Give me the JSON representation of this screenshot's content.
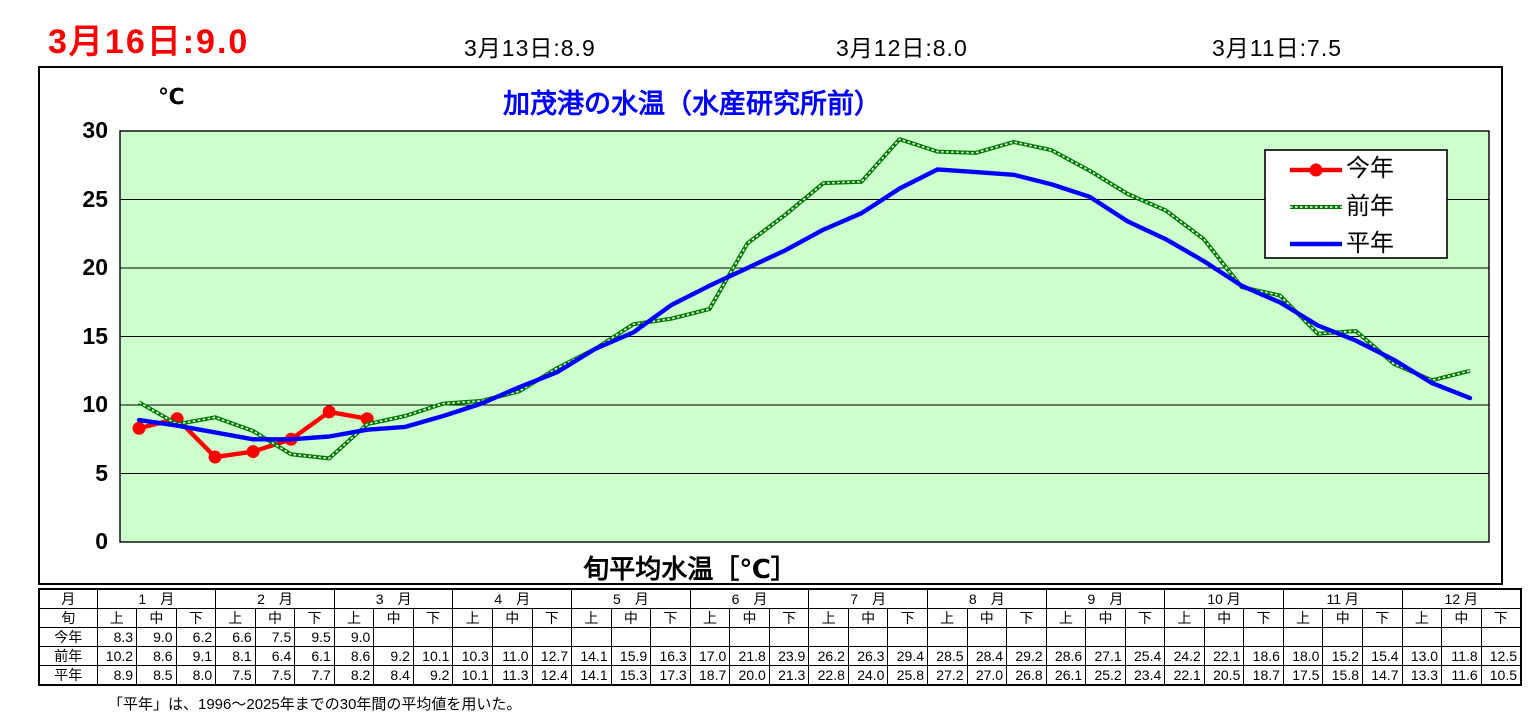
{
  "header": {
    "current_reading": "3月16日:9.0",
    "recent_readings": [
      "3月13日:8.9",
      "3月12日:8.0",
      "3月11日:7.5"
    ]
  },
  "chart_data": {
    "type": "line",
    "title": "加茂港の水温（水産研究所前）",
    "unit_label": "℃",
    "xlabel": "旬平均水温［℃］",
    "ylim": [
      0,
      30
    ],
    "yticks": [
      0,
      5,
      10,
      15,
      20,
      25,
      30
    ],
    "grid": true,
    "plot_bg": "#ccffcc",
    "legend_position": "top-right",
    "categories": [
      "1月上",
      "1月中",
      "1月下",
      "2月上",
      "2月中",
      "2月下",
      "3月上",
      "3月中",
      "3月下",
      "4月上",
      "4月中",
      "4月下",
      "5月上",
      "5月中",
      "5月下",
      "6月上",
      "6月中",
      "6月下",
      "7月上",
      "7月中",
      "7月下",
      "8月上",
      "8月中",
      "8月下",
      "9月上",
      "9月中",
      "9月下",
      "10月上",
      "10月中",
      "10月下",
      "11月上",
      "11月中",
      "11月下",
      "12月上",
      "12月中",
      "12月下"
    ],
    "series": [
      {
        "key": "this-year",
        "name": "今年",
        "color": "#ff0000",
        "style": "solid-marker",
        "values": [
          8.3,
          9.0,
          6.2,
          6.6,
          7.5,
          9.5,
          9.0
        ]
      },
      {
        "key": "last-year",
        "name": "前年",
        "color": "#007800",
        "style": "dotted",
        "values": [
          10.2,
          8.6,
          9.1,
          8.1,
          6.4,
          6.1,
          8.6,
          9.2,
          10.1,
          10.3,
          11.0,
          12.7,
          14.1,
          15.9,
          16.3,
          17.0,
          21.8,
          23.9,
          26.2,
          26.3,
          29.4,
          28.5,
          28.4,
          29.2,
          28.6,
          27.1,
          25.4,
          24.2,
          22.1,
          18.6,
          18.0,
          15.2,
          15.4,
          13.0,
          11.8,
          12.5
        ]
      },
      {
        "key": "normal-year",
        "name": "平年",
        "color": "#0000ff",
        "style": "solid",
        "values": [
          8.9,
          8.5,
          8.0,
          7.5,
          7.5,
          7.7,
          8.2,
          8.4,
          9.2,
          10.1,
          11.3,
          12.4,
          14.1,
          15.3,
          17.3,
          18.7,
          20.0,
          21.3,
          22.8,
          24.0,
          25.8,
          27.2,
          27.0,
          26.8,
          26.1,
          25.2,
          23.4,
          22.1,
          20.5,
          18.7,
          17.5,
          15.8,
          14.7,
          13.3,
          11.6,
          10.5
        ]
      }
    ]
  },
  "table": {
    "month_header_label": "月",
    "period_header_label": "旬",
    "months": [
      "1　月",
      "2　月",
      "3　月",
      "4　月",
      "5　月",
      "6　月",
      "7　月",
      "8　月",
      "9　月",
      "10 月",
      "11 月",
      "12 月"
    ],
    "periods": [
      "上",
      "中",
      "下"
    ],
    "rows": [
      {
        "label": "今年",
        "values": [
          "8.3",
          "9.0",
          "6.2",
          "6.6",
          "7.5",
          "9.5",
          "9.0",
          "",
          "",
          "",
          "",
          "",
          "",
          "",
          "",
          "",
          "",
          "",
          "",
          "",
          "",
          "",
          "",
          "",
          "",
          "",
          "",
          "",
          "",
          "",
          "",
          "",
          "",
          "",
          "",
          ""
        ]
      },
      {
        "label": "前年",
        "values": [
          "10.2",
          "8.6",
          "9.1",
          "8.1",
          "6.4",
          "6.1",
          "8.6",
          "9.2",
          "10.1",
          "10.3",
          "11.0",
          "12.7",
          "14.1",
          "15.9",
          "16.3",
          "17.0",
          "21.8",
          "23.9",
          "26.2",
          "26.3",
          "29.4",
          "28.5",
          "28.4",
          "29.2",
          "28.6",
          "27.1",
          "25.4",
          "24.2",
          "22.1",
          "18.6",
          "18.0",
          "15.2",
          "15.4",
          "13.0",
          "11.8",
          "12.5"
        ]
      },
      {
        "label": "平年",
        "values": [
          "8.9",
          "8.5",
          "8.0",
          "7.5",
          "7.5",
          "7.7",
          "8.2",
          "8.4",
          "9.2",
          "10.1",
          "11.3",
          "12.4",
          "14.1",
          "15.3",
          "17.3",
          "18.7",
          "20.0",
          "21.3",
          "22.8",
          "24.0",
          "25.8",
          "27.2",
          "27.0",
          "26.8",
          "26.1",
          "25.2",
          "23.4",
          "22.1",
          "20.5",
          "18.7",
          "17.5",
          "15.8",
          "14.7",
          "13.3",
          "11.6",
          "10.5"
        ]
      }
    ]
  },
  "footnote": "「平年」は、1996～2025年までの30年間の平均値を用いた。"
}
